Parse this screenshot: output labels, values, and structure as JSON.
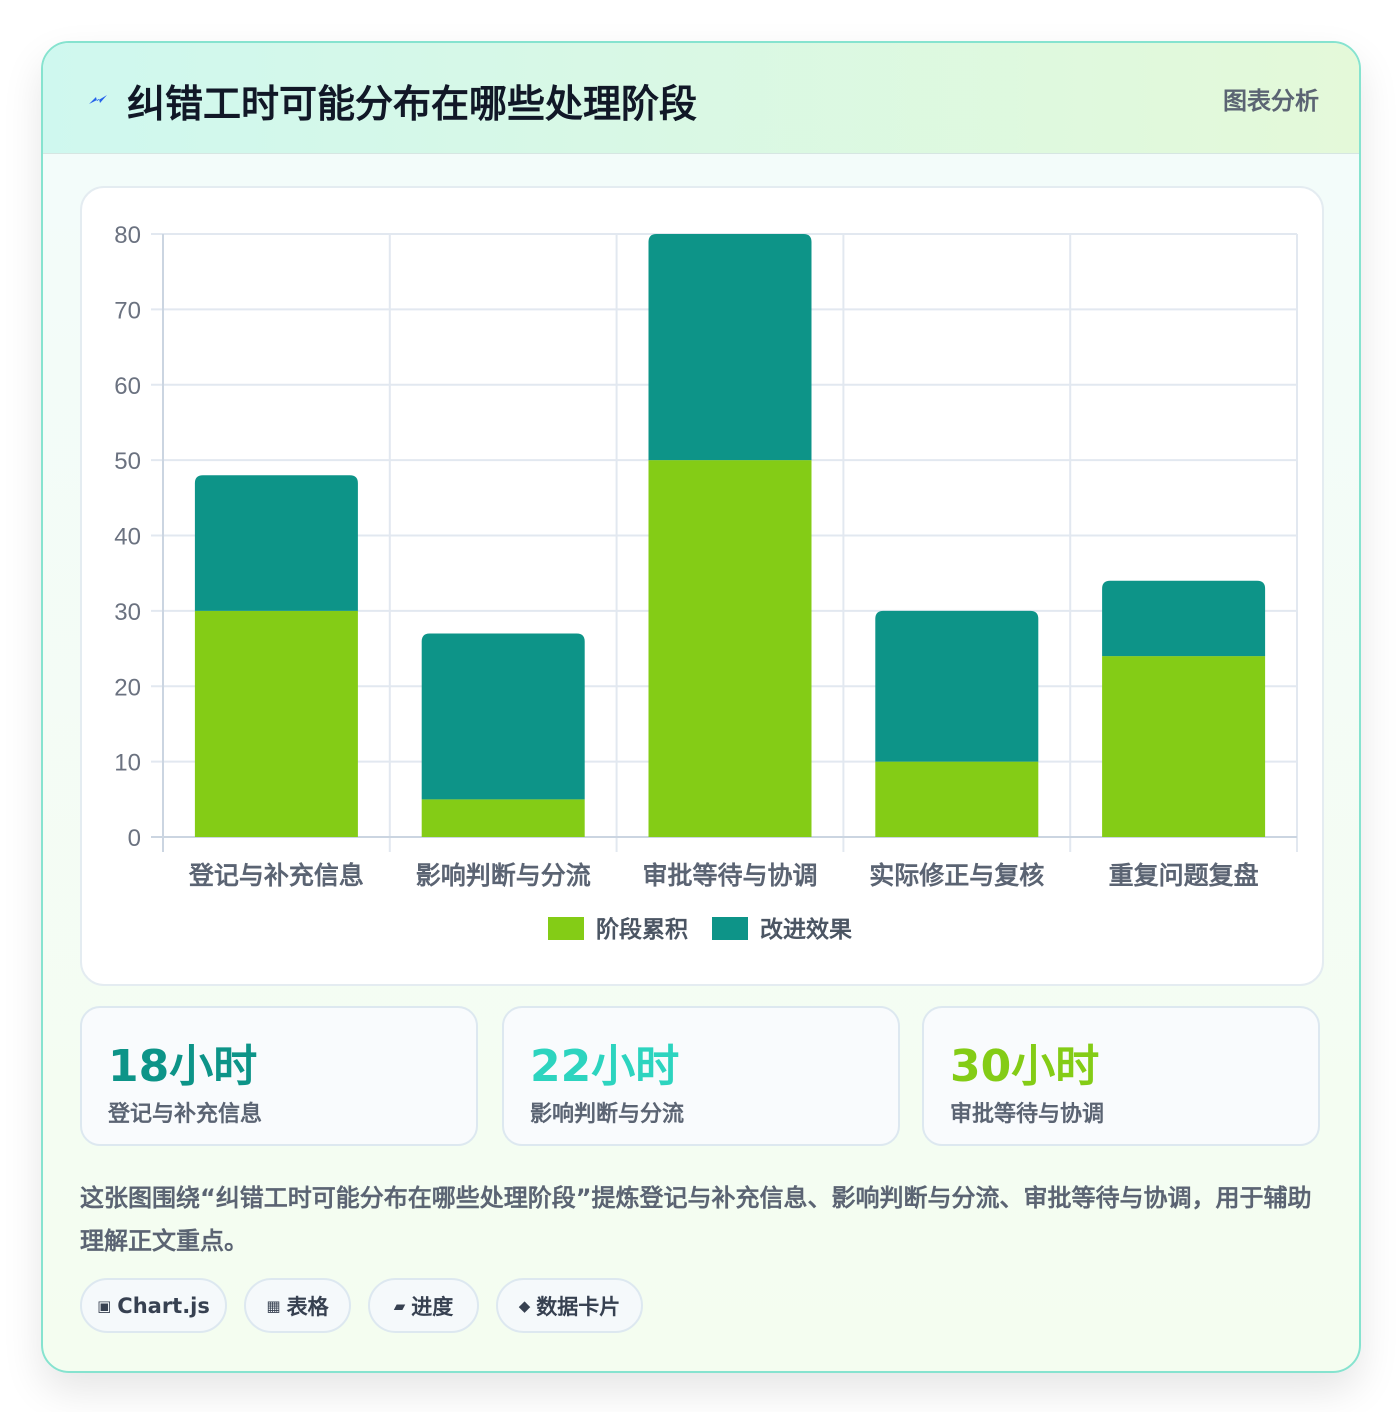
{
  "header": {
    "title": "纠错工时可能分布在哪些处理阶段",
    "tag": "图表分析",
    "icon": "lightning-icon",
    "icon_color": "#2563eb"
  },
  "chart_data": {
    "type": "bar",
    "stacked": true,
    "categories": [
      "登记与补充信息",
      "影响判断与分流",
      "审批等待与协调",
      "实际修正与复核",
      "重复问题复盘"
    ],
    "series": [
      {
        "name": "阶段累积",
        "color": "#84cc16",
        "values": [
          30,
          5,
          50,
          10,
          24
        ]
      },
      {
        "name": "改进效果",
        "color": "#0d9488",
        "values": [
          18,
          22,
          30,
          20,
          10
        ]
      }
    ],
    "ylim": [
      0,
      80
    ],
    "yticks": [
      0,
      10,
      20,
      30,
      40,
      50,
      60,
      70,
      80
    ],
    "grid": true,
    "legend_position": "bottom"
  },
  "stats": [
    {
      "value": "18小时",
      "label": "登记与补充信息",
      "color": "#0d9488"
    },
    {
      "value": "22小时",
      "label": "影响判断与分流",
      "color": "#2dd4bf"
    },
    {
      "value": "30小时",
      "label": "审批等待与协调",
      "color": "#84cc16"
    }
  ],
  "description": "这张图围绕“纠错工时可能分布在哪些处理阶段”提炼登记与补充信息、影响判断与分流、审批等待与协调，用于辅助理解正文重点。",
  "chips": [
    {
      "icon": "▣",
      "label": "Chart.js"
    },
    {
      "icon": "▦",
      "label": "表格"
    },
    {
      "icon": "▰",
      "label": "进度"
    },
    {
      "icon": "◆",
      "label": "数据卡片"
    }
  ]
}
